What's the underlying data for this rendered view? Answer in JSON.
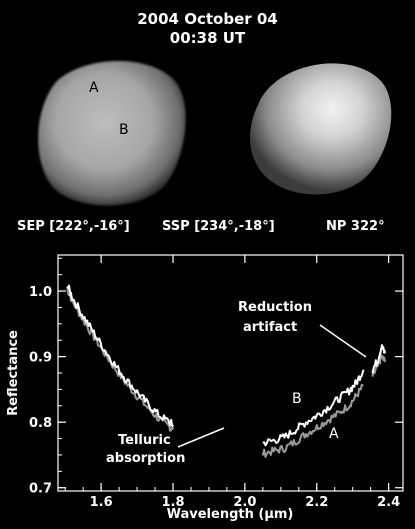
{
  "header": {
    "date": "2004 October 04",
    "time": "00:38 UT"
  },
  "images": {
    "left_labels": [
      "A",
      "B"
    ]
  },
  "geometry": {
    "sep": "SEP [222°,-16°]",
    "ssp": "SSP [234°,-18°]",
    "np": "NP 322°"
  },
  "chart_data": {
    "type": "line",
    "xlabel": "Wavelength (µm)",
    "ylabel": "Reflectance",
    "xlim": [
      1.48,
      2.44
    ],
    "ylim": [
      0.695,
      1.055
    ],
    "xticks": [
      1.6,
      1.8,
      2.0,
      2.2,
      2.4
    ],
    "xtick_labels": [
      "1.6",
      "1.8",
      "2.0",
      "2.2",
      "2.4"
    ],
    "yticks": [
      0.7,
      0.8,
      0.9,
      1.0
    ],
    "ytick_labels": [
      "0.7",
      "0.8",
      "0.9",
      "1.0"
    ],
    "grid": false,
    "series": [
      {
        "name": "B",
        "color": "#ffffff",
        "segments": [
          [
            [
              1.505,
              1.01
            ],
            [
              1.52,
              0.99
            ],
            [
              1.55,
              0.962
            ],
            [
              1.58,
              0.936
            ],
            [
              1.61,
              0.91
            ],
            [
              1.64,
              0.886
            ],
            [
              1.67,
              0.865
            ],
            [
              1.7,
              0.846
            ],
            [
              1.73,
              0.828
            ],
            [
              1.76,
              0.811
            ],
            [
              1.79,
              0.8
            ],
            [
              1.8,
              0.796
            ]
          ],
          [
            [
              2.05,
              0.768
            ],
            [
              2.08,
              0.772
            ],
            [
              2.11,
              0.777
            ],
            [
              2.14,
              0.788
            ],
            [
              2.17,
              0.8
            ],
            [
              2.2,
              0.81
            ],
            [
              2.23,
              0.822
            ],
            [
              2.26,
              0.835
            ],
            [
              2.29,
              0.848
            ],
            [
              2.31,
              0.86
            ],
            [
              2.33,
              0.88
            ]
          ],
          [
            [
              2.355,
              0.88
            ],
            [
              2.37,
              0.895
            ],
            [
              2.38,
              0.915
            ],
            [
              2.39,
              0.905
            ]
          ]
        ]
      },
      {
        "name": "A",
        "color": "#9a9a9a",
        "segments": [
          [
            [
              1.505,
              1.004
            ],
            [
              1.52,
              0.985
            ],
            [
              1.55,
              0.956
            ],
            [
              1.58,
              0.93
            ],
            [
              1.61,
              0.905
            ],
            [
              1.64,
              0.881
            ],
            [
              1.67,
              0.859
            ],
            [
              1.7,
              0.84
            ],
            [
              1.73,
              0.822
            ],
            [
              1.76,
              0.805
            ],
            [
              1.79,
              0.793
            ],
            [
              1.8,
              0.789
            ]
          ],
          [
            [
              2.05,
              0.752
            ],
            [
              2.08,
              0.756
            ],
            [
              2.11,
              0.76
            ],
            [
              2.14,
              0.77
            ],
            [
              2.17,
              0.782
            ],
            [
              2.2,
              0.792
            ],
            [
              2.23,
              0.803
            ],
            [
              2.26,
              0.813
            ],
            [
              2.29,
              0.826
            ],
            [
              2.31,
              0.84
            ],
            [
              2.33,
              0.856
            ]
          ],
          [
            [
              2.355,
              0.87
            ],
            [
              2.37,
              0.885
            ],
            [
              2.38,
              0.9
            ],
            [
              2.39,
              0.892
            ]
          ]
        ]
      }
    ],
    "annotations": {
      "reduction_line1": "Reduction",
      "reduction_line2": "artifact",
      "telluric_line1": "Telluric",
      "telluric_line2": "absorption",
      "series_label_b": "B",
      "series_label_a": "A"
    }
  }
}
